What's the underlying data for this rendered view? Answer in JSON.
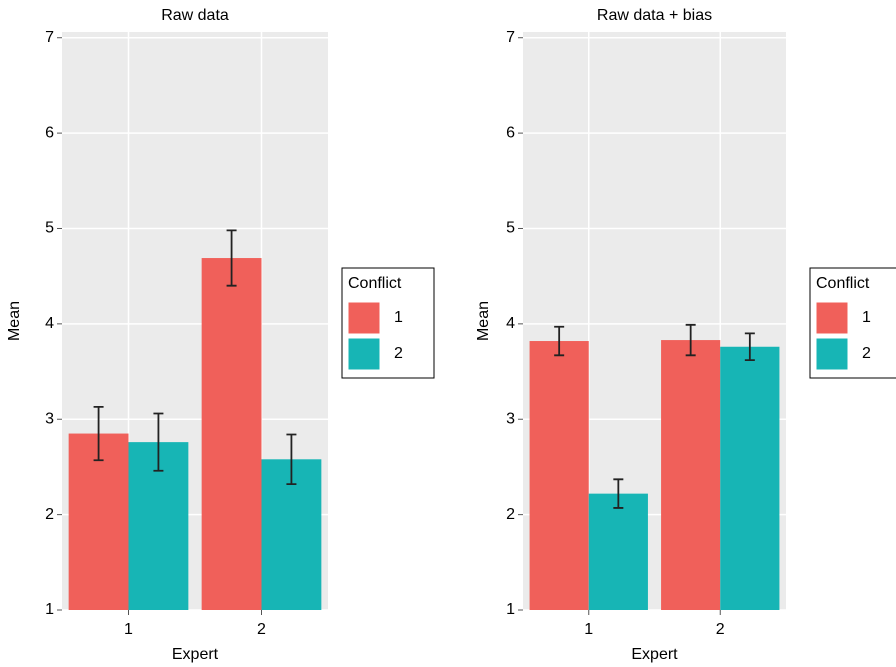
{
  "chart_data": [
    {
      "type": "bar",
      "title": "Raw data",
      "x_label": "Expert",
      "y_label": "Mean",
      "categories": [
        "1",
        "2"
      ],
      "series": [
        {
          "name": "1",
          "color": "#f0605a",
          "values": [
            2.85,
            4.69
          ],
          "errors": [
            0.28,
            0.29
          ]
        },
        {
          "name": "2",
          "color": "#17b5b5",
          "values": [
            2.76,
            2.58
          ],
          "errors": [
            0.3,
            0.26
          ]
        }
      ],
      "legend_title": "Conflict",
      "ylim": [
        1,
        7.06
      ],
      "yticks": [
        1,
        2,
        3,
        4,
        5,
        6,
        7
      ],
      "grid": true
    },
    {
      "type": "bar",
      "title": "Raw data + bias",
      "x_label": "Expert",
      "y_label": "Mean",
      "categories": [
        "1",
        "2"
      ],
      "series": [
        {
          "name": "1",
          "color": "#f0605a",
          "values": [
            3.82,
            3.83
          ],
          "errors": [
            0.15,
            0.16
          ]
        },
        {
          "name": "2",
          "color": "#17b5b5",
          "values": [
            2.22,
            3.76
          ],
          "errors": [
            0.15,
            0.14
          ]
        }
      ],
      "legend_title": "Conflict",
      "ylim": [
        1,
        7.06
      ],
      "yticks": [
        1,
        2,
        3,
        4,
        5,
        6,
        7
      ],
      "grid": true
    }
  ]
}
